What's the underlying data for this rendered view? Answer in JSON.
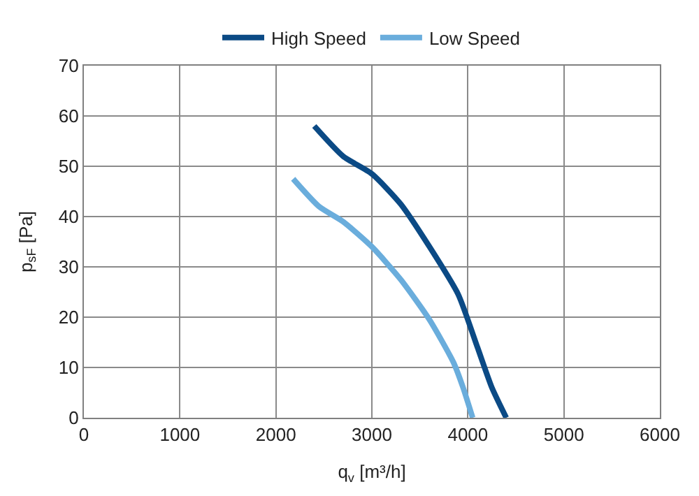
{
  "chart_data": {
    "type": "line",
    "xlabel": "q$_{v}$ [m³/h]",
    "ylabel": "p$_{sF}$ [Pa]",
    "xlim": [
      0,
      6000
    ],
    "xticks": [
      0,
      1000,
      2000,
      3000,
      4000,
      5000,
      6000
    ],
    "ylim": [
      0,
      70
    ],
    "yticks": [
      0,
      10,
      20,
      30,
      40,
      50,
      60,
      70
    ],
    "grid": true,
    "legend": "top",
    "marker": "none",
    "line_style": "solid",
    "series": [
      {
        "name": "High Speed",
        "color": "#0b4a85",
        "x": [
          2400,
          2700,
          3000,
          3300,
          3600,
          3900,
          4100,
          4250,
          4400
        ],
        "values": [
          58,
          52,
          48.5,
          42.5,
          34,
          24.5,
          14,
          6,
          0
        ]
      },
      {
        "name": "Low Speed",
        "color": "#6aaddc",
        "x": [
          2180,
          2450,
          2700,
          3000,
          3300,
          3600,
          3850,
          3950,
          4050
        ],
        "values": [
          47.5,
          42,
          39,
          34,
          27.5,
          19.5,
          11,
          6,
          0
        ]
      }
    ]
  }
}
